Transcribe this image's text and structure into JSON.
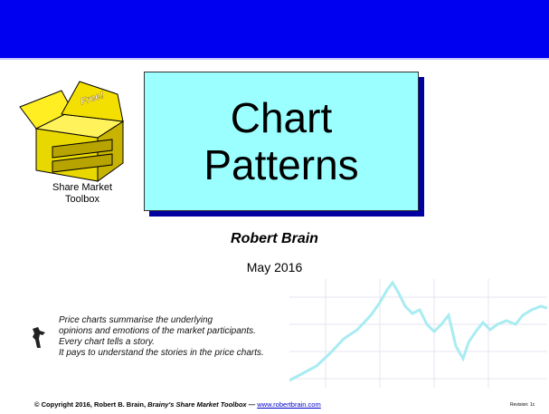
{
  "logo": {
    "badge": "Free!",
    "label_lines": [
      "Share Market",
      "Toolbox"
    ]
  },
  "title": {
    "lines": [
      "Chart",
      "Patterns"
    ]
  },
  "author": "Robert Brain",
  "date": "May 2016",
  "quote": {
    "lines": [
      "Price charts summarise the underlying",
      "opinions and emotions of the market participants.",
      "Every chart tells a story.",
      "It pays to understand the stories in the price charts."
    ]
  },
  "footer": {
    "copyright": "© Copyright 2016, Robert B. Brain, ",
    "brand": "Brainy's Share Market Toolbox",
    "separator": " — ",
    "link": "www.robertbrain.com",
    "revision": "Revision: 1c"
  }
}
